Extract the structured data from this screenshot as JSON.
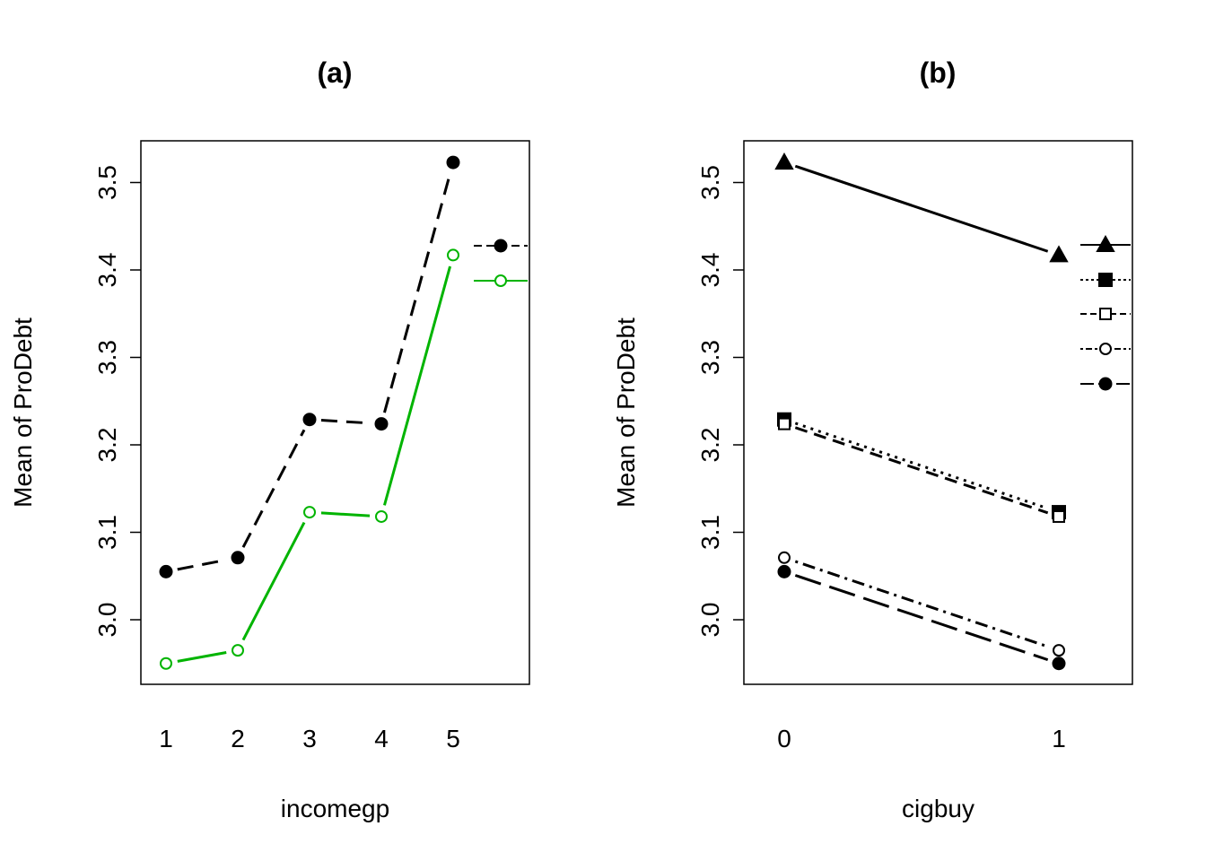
{
  "chart_data": [
    {
      "type": "line",
      "title": "(a)",
      "xlabel": "incomegp",
      "ylabel": "Mean of ProDebt",
      "categories": [
        "1",
        "2",
        "3",
        "4",
        "5"
      ],
      "ylim": [
        2.925,
        3.547
      ],
      "yticks": [
        "3.0",
        "3.1",
        "3.2",
        "3.3",
        "3.4",
        "3.5"
      ],
      "legend_position": "right",
      "series": [
        {
          "legend_id": "a-s1",
          "color": "#000000",
          "dash": "18,10",
          "marker": "filled-circle",
          "values": [
            3.055,
            3.071,
            3.229,
            3.224,
            3.523
          ]
        },
        {
          "legend_id": "a-s2",
          "color": "#00B400",
          "dash": "none",
          "marker": "open-circle",
          "values": [
            2.95,
            2.965,
            3.123,
            3.118,
            3.417
          ]
        }
      ]
    },
    {
      "type": "line",
      "title": "(b)",
      "xlabel": "cigbuy",
      "ylabel": "Mean of ProDebt",
      "categories": [
        "0",
        "1"
      ],
      "ylim": [
        2.925,
        3.547
      ],
      "yticks": [
        "3.0",
        "3.1",
        "3.2",
        "3.3",
        "3.4",
        "3.5"
      ],
      "legend_position": "right",
      "series": [
        {
          "legend_id": "b-s1",
          "color": "#000000",
          "dash": "none",
          "marker": "filled-triangle",
          "values": [
            3.523,
            3.417
          ]
        },
        {
          "legend_id": "b-s2",
          "color": "#000000",
          "dash": "3,6",
          "marker": "filled-square",
          "values": [
            3.229,
            3.123
          ]
        },
        {
          "legend_id": "b-s3",
          "color": "#000000",
          "dash": "14,8",
          "marker": "open-square",
          "values": [
            3.224,
            3.118
          ]
        },
        {
          "legend_id": "b-s4",
          "color": "#000000",
          "dash": "3,6,14,6",
          "marker": "open-circle",
          "values": [
            3.071,
            2.965
          ]
        },
        {
          "legend_id": "b-s5",
          "color": "#000000",
          "dash": "30,10",
          "marker": "filled-circle",
          "values": [
            3.055,
            2.95
          ]
        }
      ]
    }
  ]
}
